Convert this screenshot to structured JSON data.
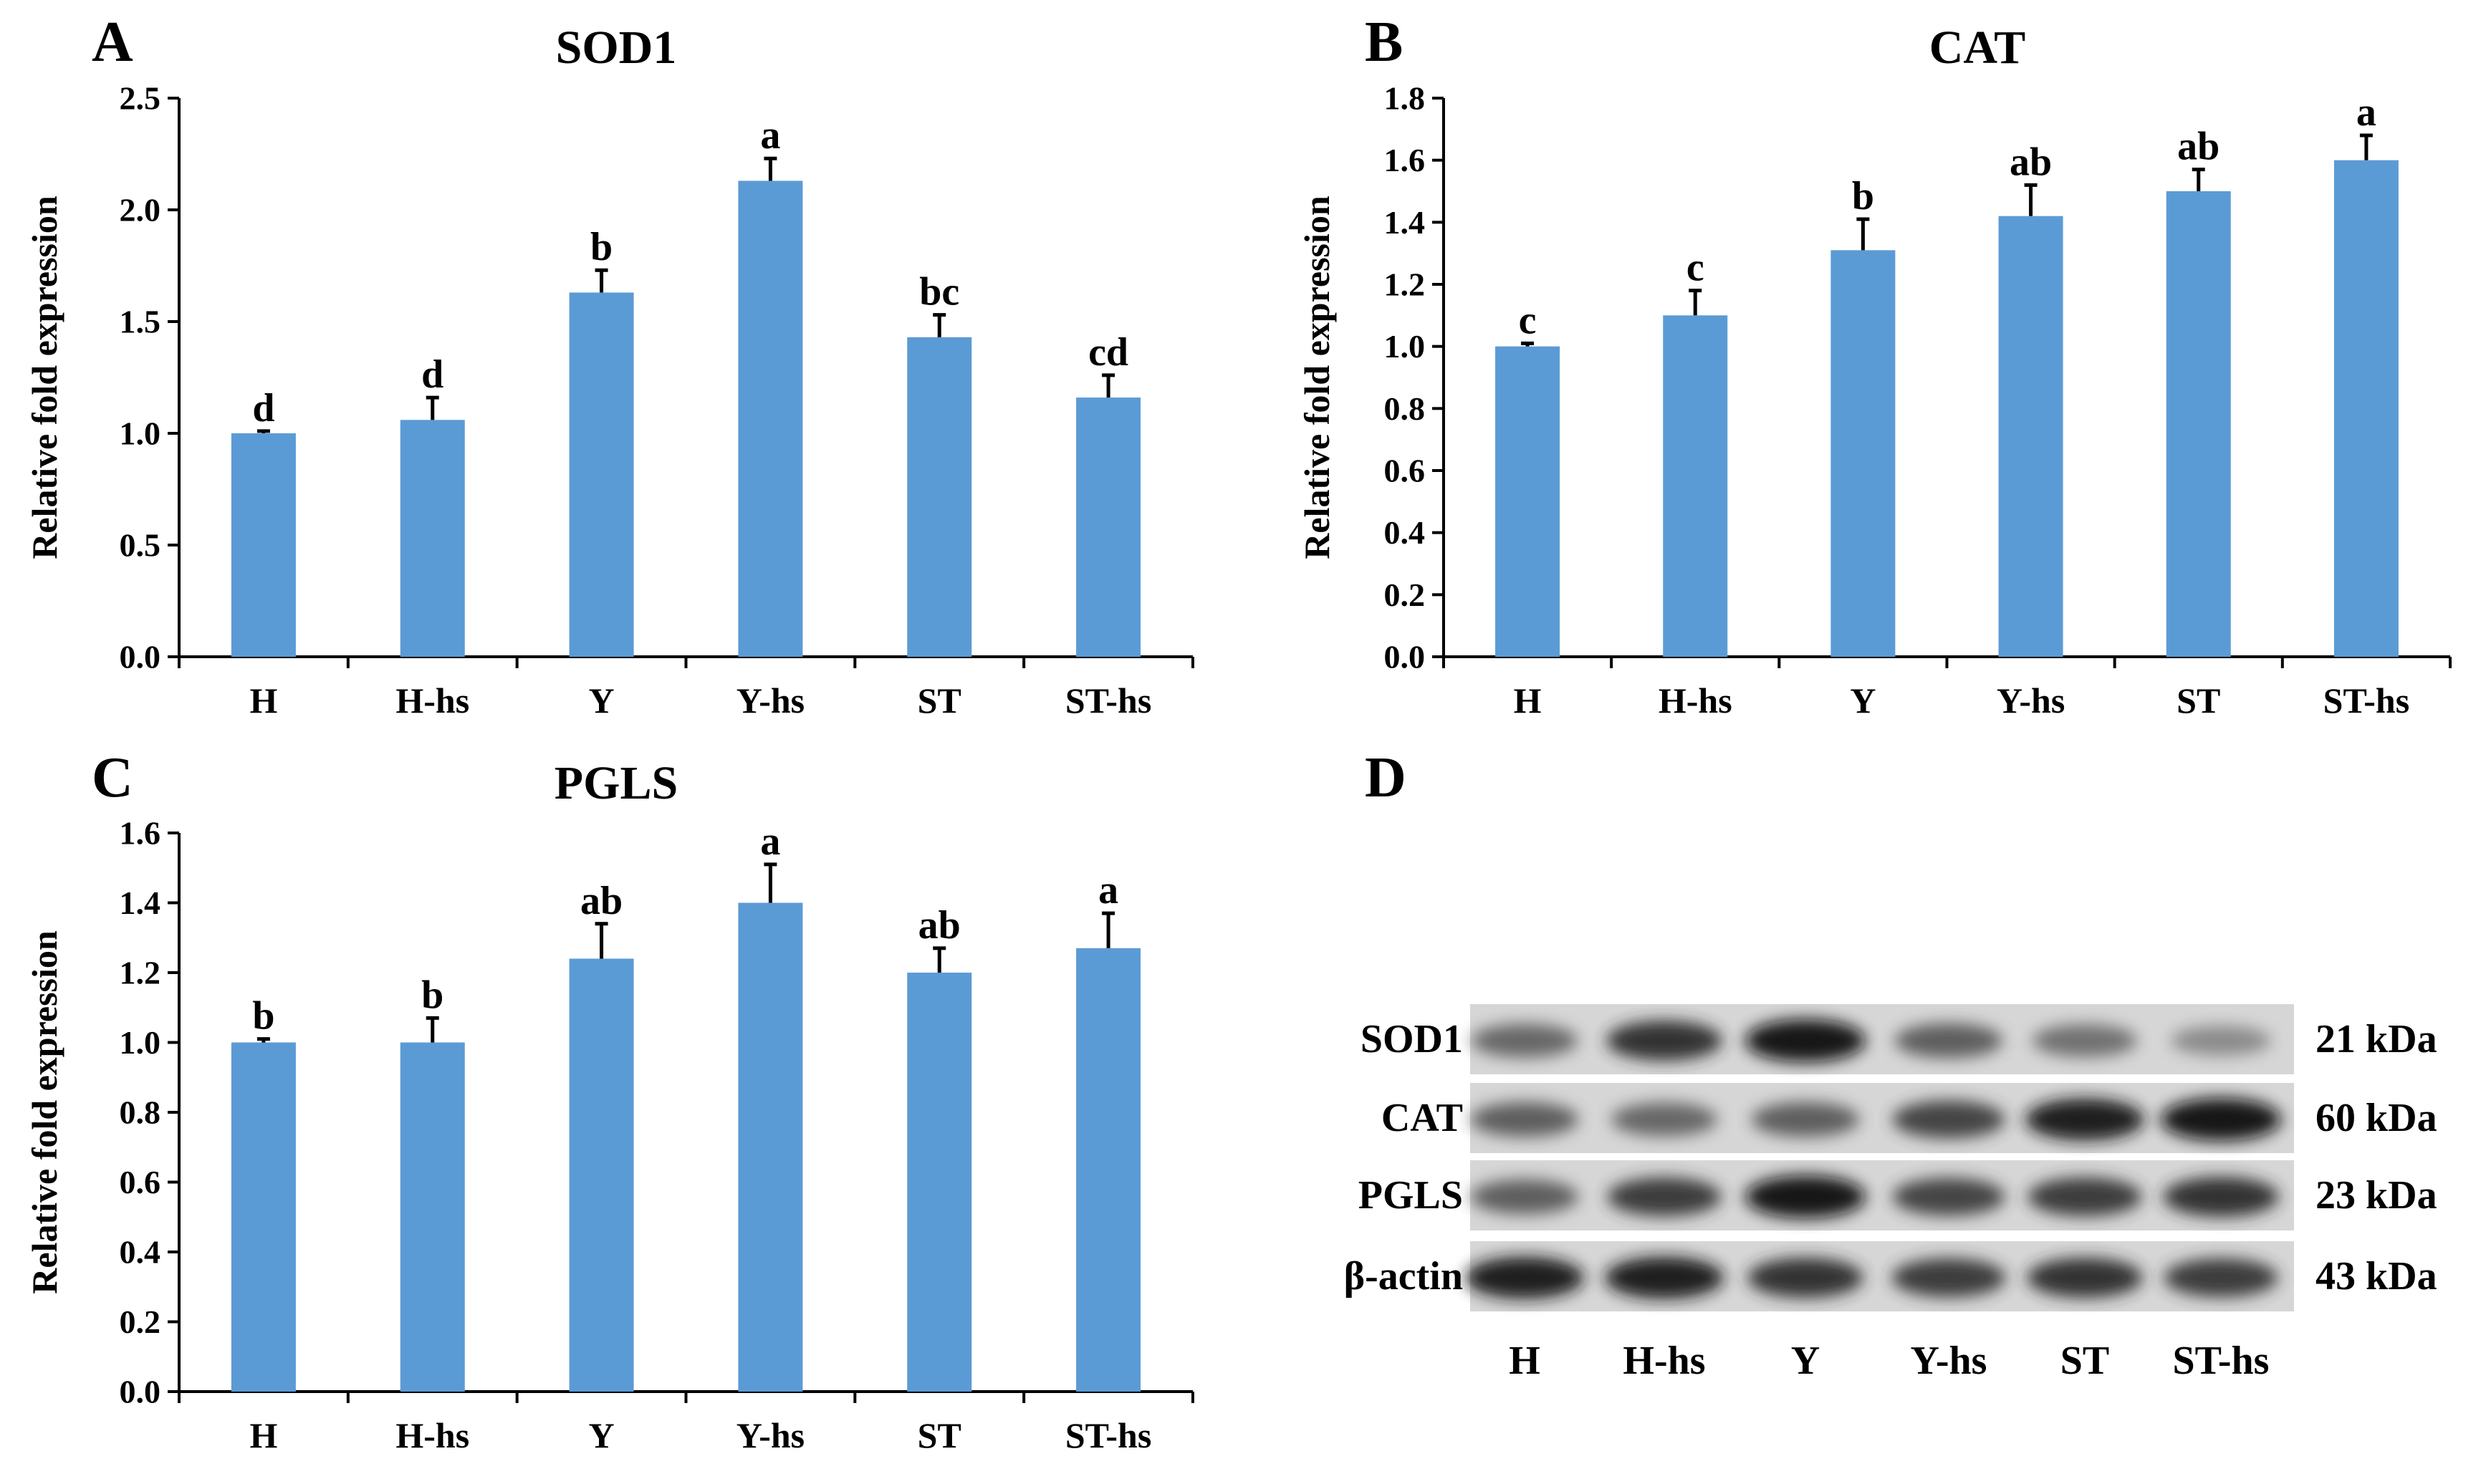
{
  "chart_data": [
    {
      "panel": "A",
      "type": "bar",
      "title": "SOD1",
      "xlabel": "",
      "ylabel": "Relative fold expression",
      "ylim": [
        0,
        2.5
      ],
      "yticks": [
        0.0,
        0.5,
        1.0,
        1.5,
        2.0,
        2.5
      ],
      "ytick_labels": [
        "0.0",
        "0.5",
        "1.0",
        "1.5",
        "2.0",
        "2.5"
      ],
      "categories": [
        "H",
        "H-hs",
        "Y",
        "Y-hs",
        "ST",
        "ST-hs"
      ],
      "values": [
        1.0,
        1.06,
        1.63,
        2.13,
        1.43,
        1.16
      ],
      "errors": [
        0.01,
        0.1,
        0.1,
        0.1,
        0.1,
        0.1
      ],
      "significance": [
        "d",
        "d",
        "b",
        "a",
        "bc",
        "cd"
      ],
      "bar_color": "#5b9bd5"
    },
    {
      "panel": "B",
      "type": "bar",
      "title": "CAT",
      "xlabel": "",
      "ylabel": "Relative fold expression",
      "ylim": [
        0,
        1.8
      ],
      "yticks": [
        0.0,
        0.2,
        0.4,
        0.6,
        0.8,
        1.0,
        1.2,
        1.4,
        1.6,
        1.8
      ],
      "ytick_labels": [
        "0.0",
        "0.2",
        "0.4",
        "0.6",
        "0.8",
        "1.0",
        "1.2",
        "1.4",
        "1.6",
        "1.8"
      ],
      "categories": [
        "H",
        "H-hs",
        "Y",
        "Y-hs",
        "ST",
        "ST-hs"
      ],
      "values": [
        1.0,
        1.1,
        1.31,
        1.42,
        1.5,
        1.6
      ],
      "errors": [
        0.01,
        0.08,
        0.1,
        0.1,
        0.07,
        0.08
      ],
      "significance": [
        "c",
        "c",
        "b",
        "ab",
        "ab",
        "a"
      ],
      "bar_color": "#5b9bd5"
    },
    {
      "panel": "C",
      "type": "bar",
      "title": "PGLS",
      "xlabel": "",
      "ylabel": "Relative fold expression",
      "ylim": [
        0,
        1.6
      ],
      "yticks": [
        0.0,
        0.2,
        0.4,
        0.6,
        0.8,
        1.0,
        1.2,
        1.4,
        1.6
      ],
      "ytick_labels": [
        "0.0",
        "0.2",
        "0.4",
        "0.6",
        "0.8",
        "1.0",
        "1.2",
        "1.4",
        "1.6"
      ],
      "categories": [
        "H",
        "H-hs",
        "Y",
        "Y-hs",
        "ST",
        "ST-hs"
      ],
      "values": [
        1.0,
        1.0,
        1.24,
        1.4,
        1.2,
        1.27
      ],
      "errors": [
        0.01,
        0.07,
        0.1,
        0.11,
        0.07,
        0.1
      ],
      "significance": [
        "b",
        "b",
        "ab",
        "a",
        "ab",
        "a"
      ],
      "bar_color": "#5b9bd5"
    }
  ],
  "western_blot": {
    "panel": "D",
    "lanes": [
      "H",
      "H-hs",
      "Y",
      "Y-hs",
      "ST",
      "ST-hs"
    ],
    "rows": [
      {
        "protein": "SOD1",
        "kda": "21 kDa",
        "intensities": [
          0.55,
          0.85,
          1.0,
          0.6,
          0.5,
          0.35
        ]
      },
      {
        "protein": "CAT",
        "kda": "60 kDa",
        "intensities": [
          0.6,
          0.55,
          0.6,
          0.75,
          0.95,
          1.0
        ]
      },
      {
        "protein": "PGLS",
        "kda": "23 kDa",
        "intensities": [
          0.6,
          0.8,
          1.0,
          0.75,
          0.8,
          0.85
        ]
      },
      {
        "protein": "β-actin",
        "kda": "43 kDa",
        "intensities": [
          0.95,
          0.95,
          0.85,
          0.8,
          0.85,
          0.8
        ]
      }
    ]
  }
}
